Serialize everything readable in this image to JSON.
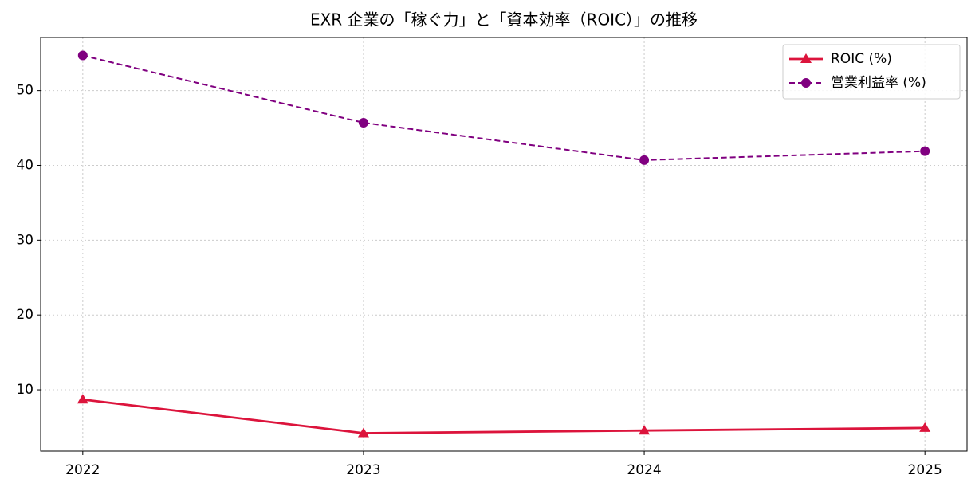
{
  "chart_data": {
    "type": "line",
    "title": "EXR 企業の「稼ぐ力」と「資本効率（ROIC）」の推移",
    "x": [
      2022,
      2023,
      2024,
      2025
    ],
    "series": [
      {
        "name": "ROIC (%)",
        "color": "#dc143c",
        "marker": "triangle",
        "dash": "solid",
        "values": [
          8.7,
          4.2,
          4.55,
          4.9
        ]
      },
      {
        "name": "営業利益率 (%)",
        "color": "#800080",
        "marker": "circle",
        "dash": "dashed",
        "values": [
          54.7,
          45.7,
          40.7,
          41.9
        ]
      }
    ],
    "xlim": [
      2021.85,
      2025.15
    ],
    "xticks": [
      2022,
      2023,
      2024,
      2025
    ],
    "ylim": [
      1.8,
      57.1
    ],
    "yticks": [
      10,
      20,
      30,
      40,
      50
    ],
    "grid": true,
    "legend": "upper-right"
  }
}
